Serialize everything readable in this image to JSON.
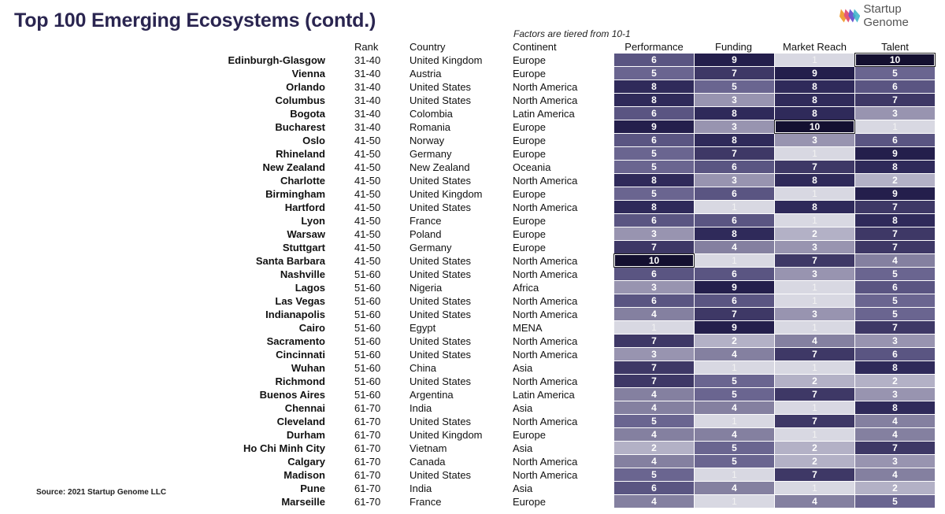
{
  "title": "Top 100 Emerging Ecosystems (contd.)",
  "logo_text": "Startup Genome",
  "subtitle": "Factors are tiered from 10-1",
  "source": "Source: 2021 Startup Genome LLC",
  "headers": {
    "rank": "Rank",
    "country": "Country",
    "continent": "Continent",
    "performance": "Performance",
    "funding": "Funding",
    "market_reach": "Market Reach",
    "talent": "Talent"
  },
  "tier_colors": {
    "1": "#d8d8e2",
    "2": "#b3b1c6",
    "3": "#9894b0",
    "4": "#8480a0",
    "5": "#6a6590",
    "6": "#5a5582",
    "7": "#3e3866",
    "8": "#2f2a5a",
    "9": "#241f4c",
    "10": "#141030"
  },
  "rows": [
    {
      "name": "Edinburgh-Glasgow",
      "rank": "31-40",
      "country": "United Kingdom",
      "continent": "Europe",
      "scores": [
        "6",
        "9",
        "1",
        "10"
      ]
    },
    {
      "name": "Vienna",
      "rank": "31-40",
      "country": "Austria",
      "continent": "Europe",
      "scores": [
        "5",
        "7",
        "9",
        "5"
      ]
    },
    {
      "name": "Orlando",
      "rank": "31-40",
      "country": "United States",
      "continent": "North America",
      "scores": [
        "8",
        "5",
        "8",
        "6"
      ]
    },
    {
      "name": "Columbus",
      "rank": "31-40",
      "country": "United States",
      "continent": "North America",
      "scores": [
        "8",
        "3",
        "8",
        "7"
      ]
    },
    {
      "name": "Bogota",
      "rank": "31-40",
      "country": "Colombia",
      "continent": "Latin America",
      "scores": [
        "6",
        "8",
        "8",
        "3"
      ]
    },
    {
      "name": "Bucharest",
      "rank": "31-40",
      "country": "Romania",
      "continent": "Europe",
      "scores": [
        "9",
        "3",
        "10",
        "1"
      ]
    },
    {
      "name": "Oslo",
      "rank": "41-50",
      "country": "Norway",
      "continent": "Europe",
      "scores": [
        "6",
        "8",
        "3",
        "6"
      ]
    },
    {
      "name": "Rhineland",
      "rank": "41-50",
      "country": "Germany",
      "continent": "Europe",
      "scores": [
        "5",
        "7",
        "1",
        "9"
      ]
    },
    {
      "name": "New Zealand",
      "rank": "41-50",
      "country": "New Zealand",
      "continent": "Oceania",
      "scores": [
        "5",
        "6",
        "7",
        "8"
      ]
    },
    {
      "name": "Charlotte",
      "rank": "41-50",
      "country": "United States",
      "continent": "North America",
      "scores": [
        "8",
        "3",
        "8",
        "2"
      ]
    },
    {
      "name": "Birmingham",
      "rank": "41-50",
      "country": "United Kingdom",
      "continent": "Europe",
      "scores": [
        "5",
        "6",
        "1",
        "9"
      ]
    },
    {
      "name": "Hartford",
      "rank": "41-50",
      "country": "United States",
      "continent": "North America",
      "scores": [
        "8",
        "1",
        "8",
        "7"
      ]
    },
    {
      "name": "Lyon",
      "rank": "41-50",
      "country": "France",
      "continent": "Europe",
      "scores": [
        "6",
        "6",
        "1",
        "8"
      ]
    },
    {
      "name": "Warsaw",
      "rank": "41-50",
      "country": "Poland",
      "continent": "Europe",
      "scores": [
        "3",
        "8",
        "2",
        "7"
      ]
    },
    {
      "name": "Stuttgart",
      "rank": "41-50",
      "country": "Germany",
      "continent": "Europe",
      "scores": [
        "7",
        "4",
        "3",
        "7"
      ]
    },
    {
      "name": "Santa Barbara",
      "rank": "41-50",
      "country": "United States",
      "continent": "North America",
      "scores": [
        "10",
        "1",
        "7",
        "4"
      ]
    },
    {
      "name": "Nashville",
      "rank": "51-60",
      "country": "United States",
      "continent": "North America",
      "scores": [
        "6",
        "6",
        "3",
        "5"
      ]
    },
    {
      "name": "Lagos",
      "rank": "51-60",
      "country": "Nigeria",
      "continent": "Africa",
      "scores": [
        "3",
        "9",
        "1",
        "6"
      ]
    },
    {
      "name": "Las Vegas",
      "rank": "51-60",
      "country": "United States",
      "continent": "North America",
      "scores": [
        "6",
        "6",
        "1",
        "5"
      ]
    },
    {
      "name": "Indianapolis",
      "rank": "51-60",
      "country": "United States",
      "continent": "North America",
      "scores": [
        "4",
        "7",
        "3",
        "5"
      ]
    },
    {
      "name": "Cairo",
      "rank": "51-60",
      "country": "Egypt",
      "continent": "MENA",
      "scores": [
        "1",
        "9",
        "1",
        "7"
      ]
    },
    {
      "name": "Sacramento",
      "rank": "51-60",
      "country": "United States",
      "continent": "North America",
      "scores": [
        "7",
        "2",
        "4",
        "3"
      ]
    },
    {
      "name": "Cincinnati",
      "rank": "51-60",
      "country": "United States",
      "continent": "North America",
      "scores": [
        "3",
        "4",
        "7",
        "6"
      ]
    },
    {
      "name": "Wuhan",
      "rank": "51-60",
      "country": "China",
      "continent": "Asia",
      "scores": [
        "7",
        "1",
        "1",
        "8"
      ]
    },
    {
      "name": "Richmond",
      "rank": "51-60",
      "country": "United States",
      "continent": "North America",
      "scores": [
        "7",
        "5",
        "2",
        "2"
      ]
    },
    {
      "name": "Buenos Aires",
      "rank": "51-60",
      "country": "Argentina",
      "continent": "Latin America",
      "scores": [
        "4",
        "5",
        "7",
        "3"
      ]
    },
    {
      "name": "Chennai",
      "rank": "61-70",
      "country": "India",
      "continent": "Asia",
      "scores": [
        "4",
        "4",
        "1",
        "8"
      ]
    },
    {
      "name": "Cleveland",
      "rank": "61-70",
      "country": "United States",
      "continent": "North America",
      "scores": [
        "5",
        "1",
        "7",
        "4"
      ]
    },
    {
      "name": "Durham",
      "rank": "61-70",
      "country": "United Kingdom",
      "continent": "Europe",
      "scores": [
        "4",
        "4",
        "1",
        "4"
      ]
    },
    {
      "name": "Ho Chi Minh City",
      "rank": "61-70",
      "country": "Vietnam",
      "continent": "Asia",
      "scores": [
        "2",
        "5",
        "2",
        "7"
      ]
    },
    {
      "name": "Calgary",
      "rank": "61-70",
      "country": "Canada",
      "continent": "North America",
      "scores": [
        "4",
        "5",
        "2",
        "3"
      ]
    },
    {
      "name": "Madison",
      "rank": "61-70",
      "country": "United States",
      "continent": "North America",
      "scores": [
        "5",
        "1",
        "7",
        "4"
      ]
    },
    {
      "name": "Pune",
      "rank": "61-70",
      "country": "India",
      "continent": "Asia",
      "scores": [
        "6",
        "4",
        "1",
        "2"
      ]
    },
    {
      "name": "Marseille",
      "rank": "61-70",
      "country": "France",
      "continent": "Europe",
      "scores": [
        "4",
        "1",
        "4",
        "5"
      ]
    }
  ]
}
